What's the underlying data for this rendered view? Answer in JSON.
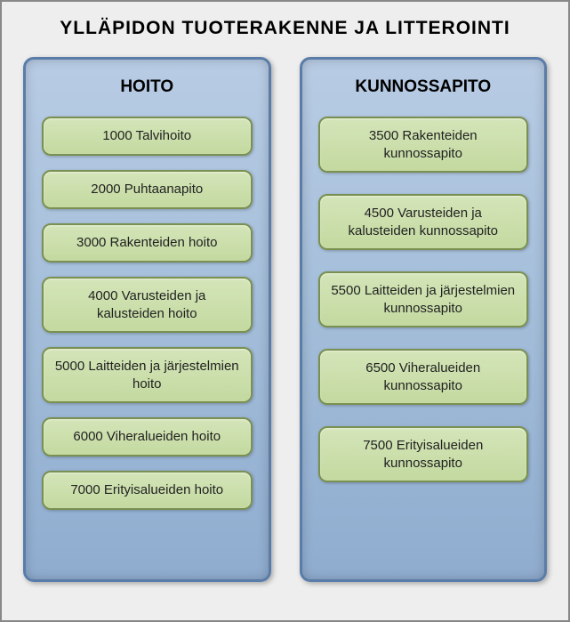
{
  "title": "YLLÄPIDON TUOTERAKENNE JA LITTEROINTI",
  "colors": {
    "outer_border": "#888888",
    "outer_bg": "#eeeeee",
    "column_bg_top": "#b8cce4",
    "column_bg_bottom": "#8faccf",
    "column_border": "#5a7ca8",
    "item_bg_top": "#d4e5b8",
    "item_bg_bottom": "#c3d9a0",
    "item_border": "#7a9050",
    "text_color": "#000000"
  },
  "columns": [
    {
      "title": "HOITO",
      "items": [
        {
          "label": "1000 Talvihoito"
        },
        {
          "label": "2000 Puhtaanapito"
        },
        {
          "label": "3000 Rakenteiden hoito"
        },
        {
          "label": "4000 Varusteiden ja kalusteiden hoito"
        },
        {
          "label": "5000 Laitteiden ja järjestelmien hoito"
        },
        {
          "label": "6000 Viheralueiden hoito"
        },
        {
          "label": "7000 Erityisalueiden hoito"
        }
      ]
    },
    {
      "title": "KUNNOSSAPITO",
      "items": [
        {
          "label": "3500 Rakenteiden kunnossapito"
        },
        {
          "label": "4500 Varusteiden ja kalusteiden kunnossapito"
        },
        {
          "label": "5500 Laitteiden ja järjestelmien kunnossapito"
        },
        {
          "label": "6500 Viheralueiden kunnossapito"
        },
        {
          "label": "7500 Erityisalueiden kunnossapito"
        }
      ]
    }
  ]
}
